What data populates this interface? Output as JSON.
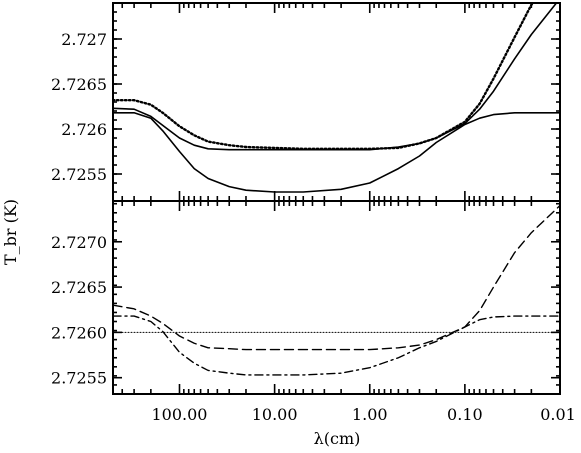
{
  "chart_data": [
    {
      "type": "line",
      "panel": "upper",
      "xlabel": "λ(cm)",
      "ylabel": "T_br (K)",
      "xscale": "log",
      "x_reversed": true,
      "xlim": [
        500,
        0.01
      ],
      "ylim": [
        2.7252,
        2.7274
      ],
      "yticks": [
        2.7255,
        2.726,
        2.7265,
        2.727
      ],
      "ytick_labels": [
        "2.7255",
        "2.726",
        "2.7265",
        "2.727"
      ],
      "series": [
        {
          "style": "solid",
          "x": [
            500,
            300,
            200,
            150,
            100,
            70,
            50,
            30,
            20,
            10,
            5,
            2,
            1,
            0.5,
            0.3,
            0.2,
            0.1,
            0.07,
            0.05,
            0.03,
            0.02,
            0.01
          ],
          "y": [
            2.72618,
            2.72618,
            2.72612,
            2.72598,
            2.72575,
            2.72556,
            2.72545,
            2.72536,
            2.72532,
            2.7253,
            2.7253,
            2.72533,
            2.7254,
            2.72556,
            2.7257,
            2.72585,
            2.72605,
            2.72612,
            2.72616,
            2.72618,
            2.72618,
            2.72618
          ]
        },
        {
          "style": "solid",
          "x": [
            500,
            300,
            200,
            150,
            100,
            70,
            50,
            30,
            20,
            10,
            5,
            2,
            1,
            0.5,
            0.3,
            0.2,
            0.1,
            0.07,
            0.05,
            0.03,
            0.02,
            0.01
          ],
          "y": [
            2.72623,
            2.72622,
            2.72614,
            2.72604,
            2.7259,
            2.72582,
            2.72578,
            2.72577,
            2.72577,
            2.72577,
            2.72577,
            2.72577,
            2.72577,
            2.7258,
            2.72584,
            2.7259,
            2.72606,
            2.72622,
            2.72642,
            2.72678,
            2.72705,
            2.72745
          ]
        },
        {
          "style": "dotted",
          "x": [
            500,
            300,
            200,
            150,
            100,
            70,
            50,
            30,
            20,
            10,
            5,
            2,
            1,
            0.5,
            0.3,
            0.2,
            0.1,
            0.07,
            0.05,
            0.03,
            0.02,
            0.01
          ],
          "y": [
            2.72632,
            2.72632,
            2.72627,
            2.72618,
            2.72603,
            2.72593,
            2.72586,
            2.72582,
            2.7258,
            2.72579,
            2.72578,
            2.72578,
            2.72578,
            2.72579,
            2.72584,
            2.7259,
            2.72608,
            2.72628,
            2.72656,
            2.72702,
            2.72738,
            2.7278
          ]
        }
      ]
    },
    {
      "type": "line",
      "panel": "lower",
      "xlabel": "λ(cm)",
      "xscale": "log",
      "x_reversed": true,
      "xlim": [
        500,
        0.01
      ],
      "ylim": [
        2.72532,
        2.72745
      ],
      "yticks": [
        2.7255,
        2.726,
        2.7265,
        2.727
      ],
      "ytick_labels": [
        "2.7255",
        "2.7260",
        "2.7265",
        "2.7270"
      ],
      "xticks": [
        100,
        10,
        1,
        0.1,
        0.01
      ],
      "xtick_labels": [
        "100.00",
        "10.00",
        "1.00",
        "0.10",
        "0.01"
      ],
      "series": [
        {
          "style": "dotted",
          "x": [
            500,
            0.01
          ],
          "y": [
            2.726,
            2.726
          ]
        },
        {
          "style": "dashed",
          "x": [
            500,
            300,
            200,
            150,
            100,
            70,
            50,
            30,
            20,
            10,
            5,
            2,
            1,
            0.5,
            0.3,
            0.2,
            0.1,
            0.07,
            0.05,
            0.03,
            0.02,
            0.01
          ],
          "y": [
            2.7263,
            2.72626,
            2.72618,
            2.7261,
            2.72596,
            2.72588,
            2.72583,
            2.72582,
            2.72581,
            2.72581,
            2.72581,
            2.72581,
            2.72581,
            2.72583,
            2.72586,
            2.72592,
            2.72606,
            2.72624,
            2.7265,
            2.72688,
            2.7271,
            2.7274
          ]
        },
        {
          "style": "dash-dot",
          "x": [
            500,
            300,
            200,
            150,
            100,
            70,
            50,
            30,
            20,
            10,
            5,
            2,
            1,
            0.5,
            0.3,
            0.2,
            0.1,
            0.07,
            0.05,
            0.03,
            0.02,
            0.01
          ],
          "y": [
            2.72618,
            2.72618,
            2.72612,
            2.72601,
            2.72578,
            2.72566,
            2.72558,
            2.72555,
            2.72553,
            2.72553,
            2.72553,
            2.72555,
            2.72561,
            2.72572,
            2.72583,
            2.7259,
            2.72606,
            2.72614,
            2.72617,
            2.72618,
            2.72618,
            2.72618
          ]
        }
      ]
    }
  ]
}
